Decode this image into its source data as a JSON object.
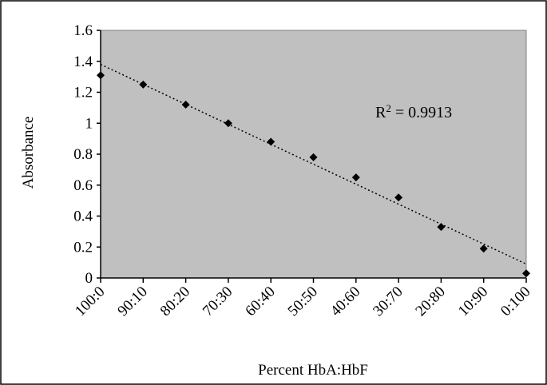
{
  "chart_data": {
    "type": "scatter",
    "xlabel": "Percent HbA:HbF",
    "ylabel": "Absorbance",
    "categories": [
      "100:0",
      "90:10",
      "80:20",
      "70:30",
      "60:40",
      "50:50",
      "40:60",
      "30:70",
      "20:80",
      "10:90",
      "0:100"
    ],
    "series": [
      {
        "values": [
          1.31,
          1.25,
          1.12,
          1.0,
          0.88,
          0.78,
          0.65,
          0.52,
          0.33,
          0.19,
          0.03
        ],
        "marker": "diamond",
        "color": "#000000"
      }
    ],
    "trendline": {
      "type": "linear",
      "start": 1.38,
      "end": 0.09,
      "style": "dotted"
    },
    "annotation": {
      "prefix": "R",
      "sup": "2",
      "suffix": " = 0.9913"
    },
    "ylim": [
      0,
      1.6
    ],
    "yticks": [
      "0",
      "0.2",
      "0.4",
      "0.6",
      "0.8",
      "1",
      "1.2",
      "1.4",
      "1.6"
    ],
    "plot_bg": "#c0c0c0",
    "grid": false,
    "legend": "none"
  }
}
